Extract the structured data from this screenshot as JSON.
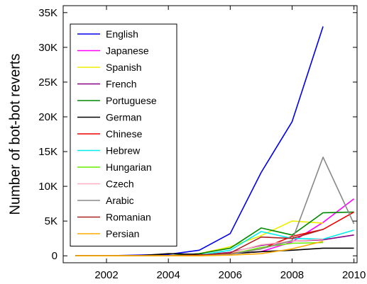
{
  "chart_data": {
    "type": "line",
    "title": "",
    "xlabel": "",
    "ylabel": "Number of bot-bot reverts",
    "xlim": [
      2000.6,
      2010.1
    ],
    "ylim": [
      -1000,
      36000
    ],
    "x_ticks": [
      2002,
      2004,
      2006,
      2008,
      2010
    ],
    "x_tick_labels": [
      "2002",
      "2004",
      "2006",
      "2008",
      "2010"
    ],
    "y_ticks": [
      0,
      5000,
      10000,
      15000,
      20000,
      25000,
      30000,
      35000
    ],
    "y_tick_labels": [
      "0",
      "5K",
      "10K",
      "15K",
      "20K",
      "25K",
      "30K",
      "35K"
    ],
    "legend_position": "top-left",
    "grid": false,
    "series": [
      {
        "name": "English",
        "color": "#0000ee",
        "x": [
          2001,
          2002,
          2003,
          2004,
          2005,
          2006,
          2007,
          2008,
          2009
        ],
        "y": [
          0,
          0,
          100,
          200,
          800,
          3200,
          12000,
          19300,
          33000
        ]
      },
      {
        "name": "Japanese",
        "color": "#ff00ff",
        "x": [
          2001,
          2002,
          2003,
          2004,
          2005,
          2006,
          2007,
          2008,
          2009,
          2010
        ],
        "y": [
          0,
          0,
          0,
          0,
          100,
          300,
          600,
          2000,
          4800,
          8200
        ]
      },
      {
        "name": "Spanish",
        "color": "#eeee00",
        "x": [
          2001,
          2002,
          2003,
          2004,
          2005,
          2006,
          2007,
          2008,
          2009
        ],
        "y": [
          0,
          0,
          0,
          0,
          300,
          1300,
          2900,
          5000,
          4700
        ]
      },
      {
        "name": "French",
        "color": "#880088",
        "x": [
          2001,
          2002,
          2003,
          2004,
          2005,
          2006,
          2007,
          2008,
          2009,
          2010
        ],
        "y": [
          0,
          0,
          0,
          0,
          100,
          500,
          1500,
          2100,
          2300,
          3000
        ]
      },
      {
        "name": "Portuguese",
        "color": "#008800",
        "x": [
          2001,
          2002,
          2003,
          2004,
          2005,
          2006,
          2007,
          2008,
          2009,
          2010
        ],
        "y": [
          0,
          0,
          0,
          0,
          300,
          1100,
          4000,
          3000,
          6200,
          6300
        ]
      },
      {
        "name": "German",
        "color": "#000000",
        "x": [
          2001,
          2002,
          2003,
          2004,
          2005,
          2006,
          2007,
          2008,
          2009,
          2010
        ],
        "y": [
          0,
          0,
          0,
          300,
          200,
          300,
          600,
          800,
          1100,
          1100
        ]
      },
      {
        "name": "Chinese",
        "color": "#ee0000",
        "x": [
          2001,
          2002,
          2003,
          2004,
          2005,
          2006,
          2007,
          2008,
          2009,
          2010
        ],
        "y": [
          0,
          0,
          0,
          0,
          100,
          300,
          1000,
          2800,
          3800,
          6300
        ]
      },
      {
        "name": "Hebrew",
        "color": "#00eeee",
        "x": [
          2001,
          2002,
          2003,
          2004,
          2005,
          2006,
          2007,
          2008,
          2009,
          2010
        ],
        "y": [
          0,
          0,
          0,
          0,
          100,
          800,
          3500,
          2500,
          2400,
          3700
        ]
      },
      {
        "name": "Hungarian",
        "color": "#66ee00",
        "x": [
          2001,
          2002,
          2003,
          2004,
          2005,
          2006,
          2007,
          2008,
          2009
        ],
        "y": [
          0,
          0,
          0,
          0,
          100,
          200,
          1200,
          1800,
          1900
        ]
      },
      {
        "name": "Czech",
        "color": "#ffb0c0",
        "x": [
          2001,
          2002,
          2003,
          2004,
          2005,
          2006,
          2007,
          2008,
          2009
        ],
        "y": [
          0,
          0,
          0,
          0,
          100,
          400,
          1600,
          2100,
          2400
        ]
      },
      {
        "name": "Arabic",
        "color": "#888888",
        "x": [
          2001,
          2002,
          2003,
          2004,
          2005,
          2006,
          2007,
          2008,
          2009,
          2010
        ],
        "y": [
          0,
          0,
          0,
          0,
          100,
          200,
          1000,
          2200,
          14200,
          4600
        ]
      },
      {
        "name": "Romanian",
        "color": "#aa2222",
        "x": [
          2001,
          2002,
          2003,
          2004,
          2005,
          2006,
          2007,
          2008,
          2009
        ],
        "y": [
          0,
          0,
          0,
          0,
          100,
          400,
          2700,
          2500,
          3800
        ]
      },
      {
        "name": "Persian",
        "color": "#ffaa00",
        "x": [
          2001,
          2002,
          2003,
          2004,
          2005,
          2006,
          2007,
          2008,
          2009
        ],
        "y": [
          0,
          0,
          0,
          0,
          0,
          100,
          300,
          1000,
          2100
        ]
      }
    ]
  }
}
